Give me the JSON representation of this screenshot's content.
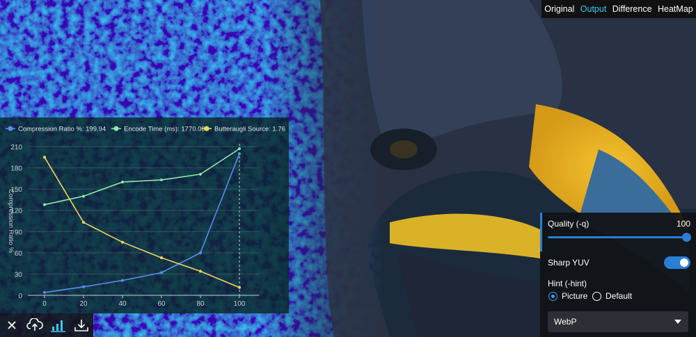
{
  "tabs": {
    "items": [
      "Original",
      "Output",
      "Difference",
      "HeatMap"
    ],
    "active": "Output"
  },
  "colors": {
    "accent": "#2a7fd4",
    "active_tab": "#3ec9f0",
    "compression": "#5b8ef0",
    "encode": "#8de8a6",
    "butteraugli": "#f3d75a"
  },
  "chart_data": {
    "type": "line",
    "x": [
      0,
      20,
      40,
      60,
      80,
      100
    ],
    "xlim": [
      0,
      100
    ],
    "ylim": [
      0,
      210
    ],
    "yticks": [
      0,
      30,
      60,
      90,
      120,
      150,
      180,
      210
    ],
    "ylabel": "Compression Ratio %",
    "legend_position": "top",
    "series": [
      {
        "name": "Compression Ratio %: 199.94",
        "values": [
          4,
          12,
          21,
          32,
          60,
          200
        ]
      },
      {
        "name": "Encode Time (ms): 1770.00",
        "values": [
          128,
          140,
          160,
          163,
          171,
          207
        ]
      },
      {
        "name": "Butteraugli Source: 1.76",
        "values": [
          195,
          103,
          75,
          53,
          34,
          11
        ]
      }
    ],
    "crosshair_x": 100
  },
  "toolbar": {
    "icons": [
      "close-icon",
      "upload-cloud-icon",
      "bar-chart-icon",
      "download-icon"
    ]
  },
  "options": {
    "quality_label": "Quality (-q)",
    "quality_value": "100",
    "quality_fraction": 1.0,
    "sharp_yuv_label": "Sharp YUV",
    "sharp_yuv_on": true,
    "hint_label": "Hint (-hint)",
    "hint_options": [
      "Picture",
      "Default"
    ],
    "hint_selected": "Picture",
    "format_value": "WebP"
  }
}
